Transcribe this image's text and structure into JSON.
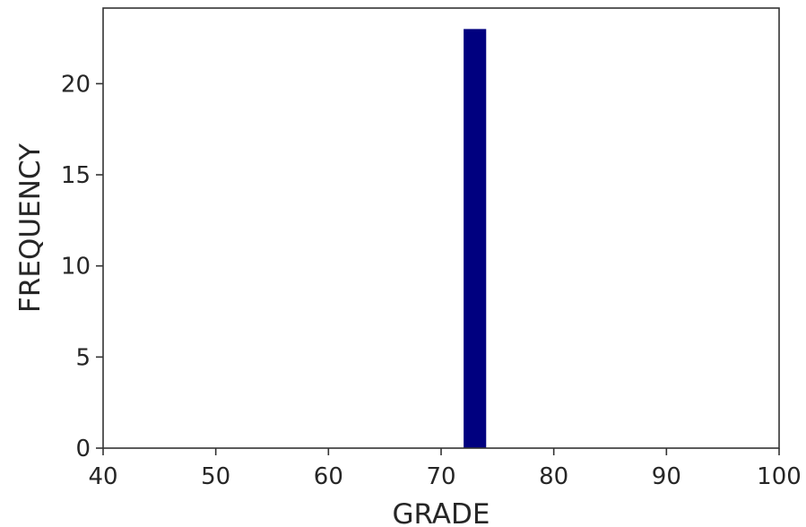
{
  "chart_data": {
    "type": "bar",
    "xlabel": "GRADE",
    "ylabel": "FREQUENCY",
    "xlim": [
      40,
      100
    ],
    "ylim": [
      0,
      24.15
    ],
    "x_ticks": [
      "40",
      "50",
      "60",
      "70",
      "80",
      "90",
      "100"
    ],
    "y_ticks": [
      "0",
      "5",
      "10",
      "15",
      "20"
    ],
    "bars": [
      {
        "x_start": 72.0,
        "x_end": 74.0,
        "value": 23
      }
    ],
    "bar_color": "#00007f",
    "grid": false,
    "title": ""
  }
}
